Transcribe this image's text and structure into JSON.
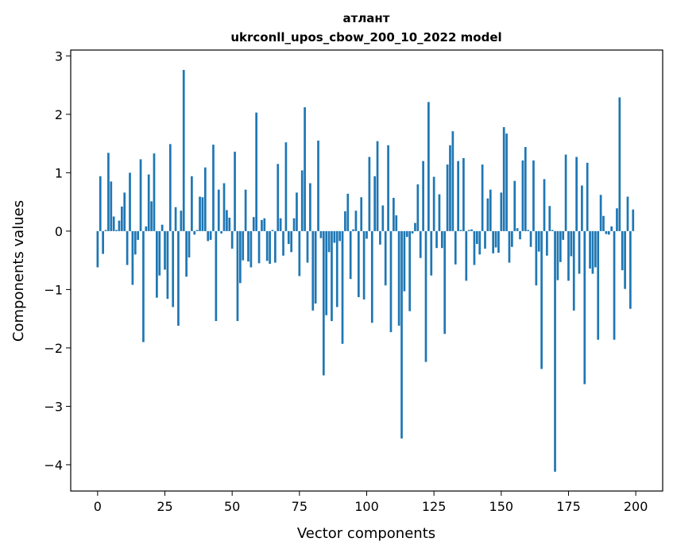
{
  "chart_data": {
    "type": "bar",
    "title": "атлант",
    "subtitle": "ukrconll_upos_cbow_200_10_2022 model",
    "xlabel": "Vector components",
    "ylabel": "Components values",
    "xlim": [
      -10,
      210
    ],
    "ylim": [
      -4.45,
      3.1
    ],
    "xticks": [
      0,
      25,
      50,
      75,
      100,
      125,
      150,
      175,
      200
    ],
    "yticks": [
      -4,
      -3,
      -2,
      -1,
      0,
      1,
      2,
      3
    ],
    "xtick_labels": [
      "0",
      "25",
      "50",
      "75",
      "100",
      "125",
      "150",
      "175",
      "200"
    ],
    "ytick_labels": [
      "−4",
      "−3",
      "−2",
      "−1",
      "0",
      "1",
      "2",
      "3"
    ],
    "grid": false,
    "bar_color": "#1f77b4",
    "values": [
      -0.62,
      0.94,
      -0.39,
      0.02,
      1.34,
      0.85,
      0.25,
      0.02,
      0.18,
      0.42,
      0.66,
      -0.58,
      1.0,
      -0.92,
      -0.4,
      -0.15,
      1.23,
      -1.9,
      0.08,
      0.97,
      0.51,
      1.33,
      -1.14,
      -0.76,
      0.11,
      -0.66,
      -1.16,
      1.49,
      -1.3,
      0.41,
      -1.62,
      0.35,
      2.76,
      -0.78,
      -0.45,
      0.94,
      -0.06,
      0.02,
      0.59,
      0.58,
      1.09,
      -0.17,
      -0.15,
      1.48,
      -1.54,
      0.71,
      -0.04,
      0.82,
      0.36,
      0.23,
      -0.3,
      1.36,
      -1.54,
      -0.89,
      -0.5,
      0.71,
      -0.52,
      -0.62,
      0.24,
      2.03,
      -0.55,
      0.19,
      0.22,
      -0.51,
      -0.56,
      0.02,
      -0.54,
      1.15,
      0.22,
      -0.42,
      1.52,
      -0.22,
      -0.36,
      0.22,
      0.66,
      -0.77,
      1.04,
      2.12,
      -0.54,
      0.82,
      -1.36,
      -1.24,
      1.55,
      -0.12,
      -2.47,
      -1.44,
      -0.36,
      -1.54,
      -0.2,
      -1.3,
      -0.17,
      -1.93,
      0.34,
      0.64,
      -0.82,
      0.03,
      0.35,
      -1.13,
      0.58,
      -1.17,
      -0.13,
      1.27,
      -1.57,
      0.94,
      1.54,
      -0.23,
      0.44,
      -0.93,
      1.47,
      -1.73,
      0.57,
      0.27,
      -1.62,
      -3.55,
      -1.03,
      -0.1,
      -1.37,
      -0.04,
      0.14,
      0.8,
      -0.46,
      1.2,
      -2.24,
      2.21,
      -0.76,
      0.93,
      -0.29,
      0.63,
      -0.29,
      -1.76,
      1.14,
      1.47,
      1.71,
      -0.57,
      1.2,
      0.02,
      1.25,
      -0.85,
      0.02,
      0.03,
      -0.58,
      -0.22,
      -0.4,
      1.14,
      -0.3,
      0.56,
      0.71,
      -0.38,
      -0.28,
      -0.37,
      0.66,
      1.78,
      1.67,
      -0.54,
      -0.27,
      0.86,
      0.05,
      -0.14,
      1.21,
      1.44,
      0.02,
      -0.27,
      1.21,
      -0.93,
      -0.35,
      -2.36,
      0.89,
      -0.42,
      0.43,
      0.02,
      -4.12,
      -0.84,
      -0.53,
      -0.15,
      1.31,
      -0.85,
      -0.43,
      -1.36,
      1.27,
      -0.73,
      0.78,
      -2.62,
      1.17,
      -0.64,
      -0.73,
      -0.62,
      -1.86,
      0.62,
      0.26,
      -0.05,
      -0.06,
      0.08,
      -1.86,
      0.39,
      2.29,
      -0.67,
      -0.99,
      0.59,
      -1.33,
      0.37
    ]
  }
}
